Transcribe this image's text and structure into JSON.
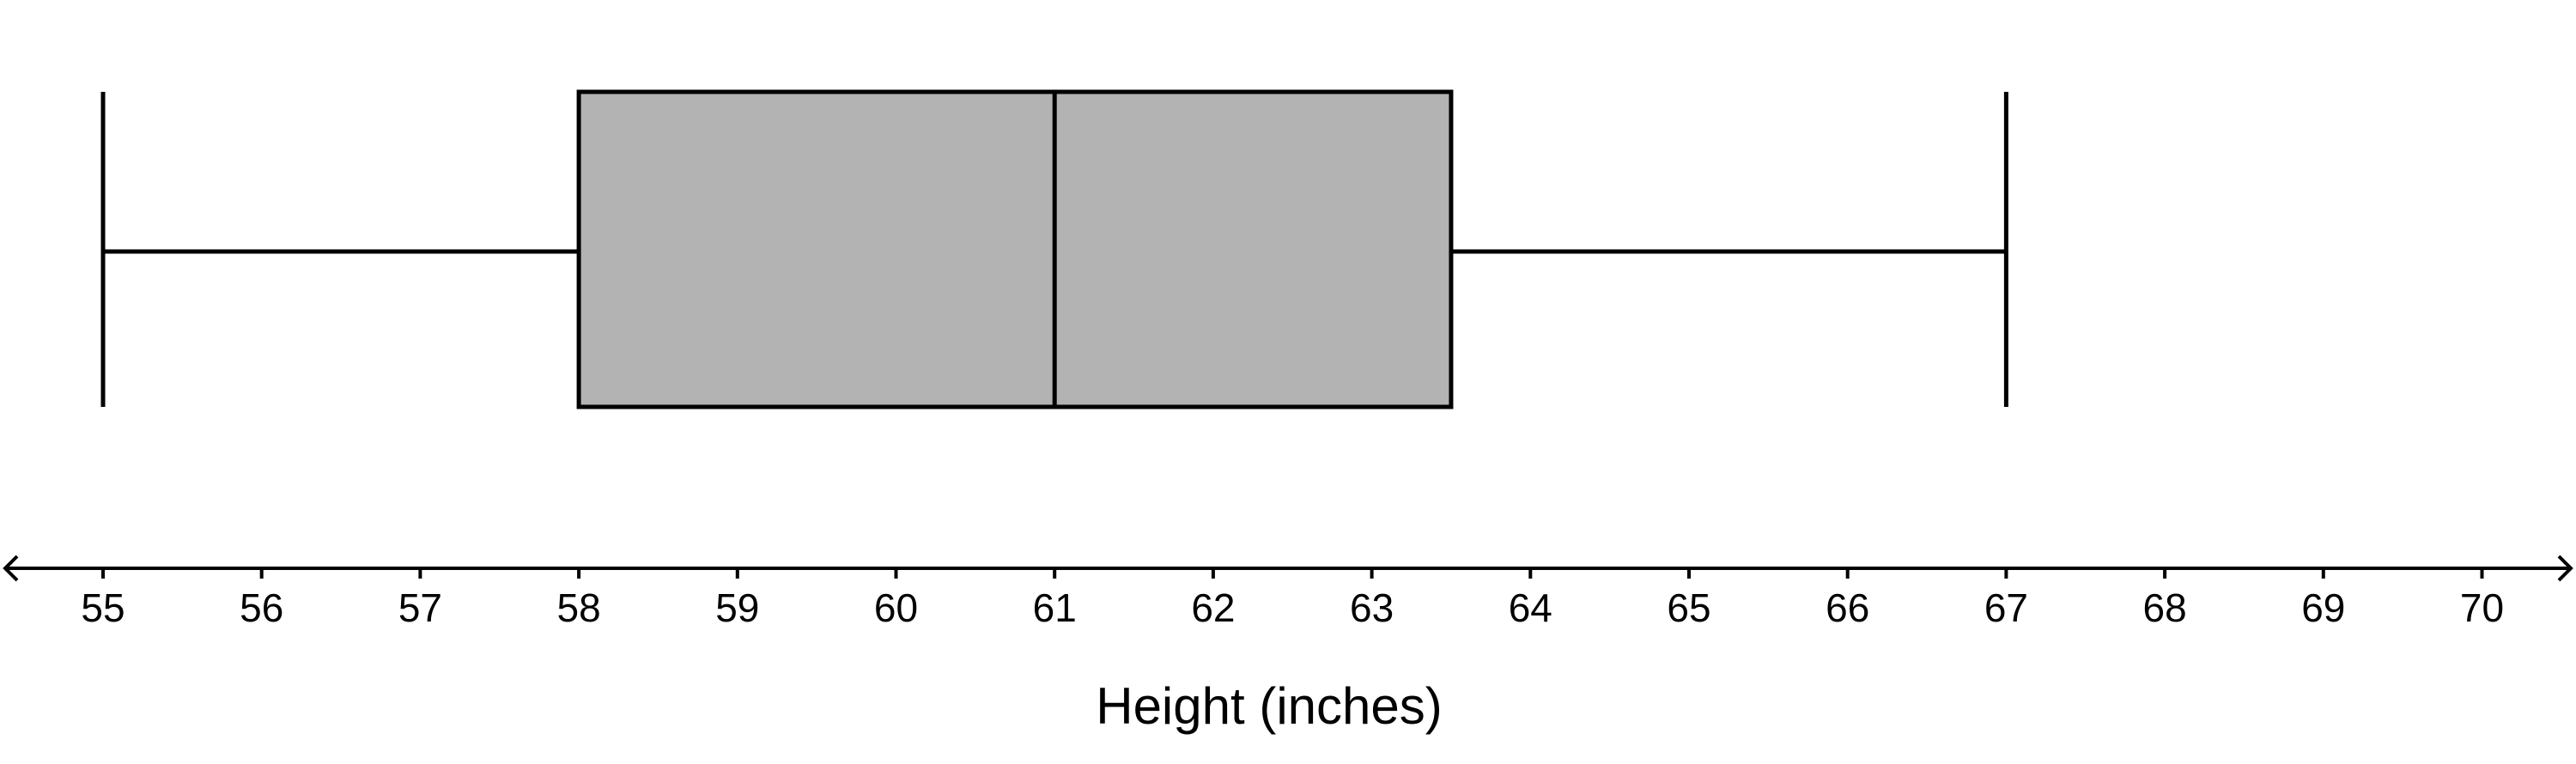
{
  "chart_data": {
    "type": "boxplot",
    "title": "",
    "xlabel": "Height (inches)",
    "ylabel": "",
    "xlim": [
      55,
      70
    ],
    "ticks": [
      "55",
      "56",
      "57",
      "58",
      "59",
      "60",
      "61",
      "62",
      "63",
      "64",
      "65",
      "66",
      "67",
      "68",
      "69",
      "70"
    ],
    "summary": {
      "min": 55,
      "q1": 58,
      "median": 61,
      "q3": 63.5,
      "max": 67
    },
    "box_color": "#b3b3b3",
    "line_color": "#000000",
    "grid": false,
    "axis_arrows": true
  }
}
